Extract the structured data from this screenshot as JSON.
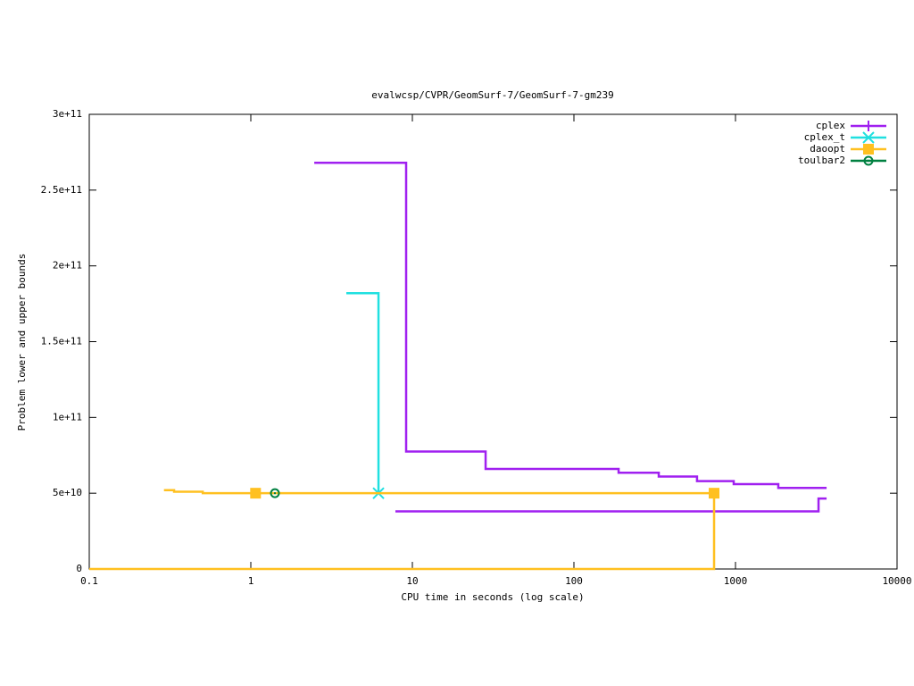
{
  "chart_data": {
    "type": "line",
    "title": "evalwcsp/CVPR/GeomSurf-7/GeomSurf-7-gm239",
    "x_label": "CPU time in seconds (log scale)",
    "y_label": "Problem lower and upper bounds",
    "x_log": true,
    "xlim": [
      0.1,
      10000
    ],
    "xticks": [
      0.1,
      1,
      10,
      100,
      1000,
      10000
    ],
    "ylim": [
      0,
      300000000000
    ],
    "yticks": [
      {
        "value": 0,
        "label": "0"
      },
      {
        "value": 50000000000,
        "label": "5e+10"
      },
      {
        "value": 100000000000,
        "label": "1e+11"
      },
      {
        "value": 150000000000,
        "label": "1.5e+11"
      },
      {
        "value": 200000000000,
        "label": "2e+11"
      },
      {
        "value": 250000000000,
        "label": "2.5e+11"
      },
      {
        "value": 300000000000,
        "label": "3e+11"
      }
    ],
    "legend": "top-right",
    "series": [
      {
        "name": "cplex",
        "color": "#a020f0",
        "marker": "plus",
        "x": [
          2.47,
          9.15,
          9.15,
          28.4,
          28.4,
          189,
          189,
          335,
          335,
          578,
          578,
          975,
          975,
          1841,
          1841,
          3664,
          null,
          7.85,
          3266,
          3266,
          3664
        ],
        "values": [
          268000000000,
          268000000000,
          77500000000,
          77500000000,
          66000000000,
          66000000000,
          63500000000,
          63500000000,
          61000000000,
          61000000000,
          58000000000,
          58000000000,
          56000000000,
          56000000000,
          53500000000,
          53500000000,
          null,
          38000000000,
          38000000000,
          46500000000,
          46500000000
        ],
        "points": {
          "x": [],
          "values": []
        }
      },
      {
        "name": "cplex_t",
        "color": "#20e0e0",
        "marker": "cross",
        "x": [
          3.9,
          6.17,
          6.17
        ],
        "values": [
          182000000000,
          182000000000,
          50000000000
        ],
        "points": {
          "x": [
            6.17
          ],
          "values": [
            50000000000
          ]
        }
      },
      {
        "name": "daoopt",
        "color": "#ffc020",
        "marker": "square",
        "x": [
          0.29,
          0.335,
          0.335,
          0.504,
          0.504,
          737,
          null,
          0.1,
          737,
          737
        ],
        "values": [
          52000000000,
          52000000000,
          51000000000,
          51000000000,
          50000000000,
          50000000000,
          null,
          0,
          0,
          50000000000
        ],
        "points": {
          "x": [
            1.07,
            737
          ],
          "values": [
            50000000000,
            50000000000
          ]
        }
      },
      {
        "name": "toulbar2",
        "color": "#008040",
        "marker": "circle",
        "x": [
          1.41
        ],
        "values": [
          50000000000
        ],
        "points": {
          "x": [
            1.41
          ],
          "values": [
            50000000000
          ]
        }
      }
    ]
  }
}
